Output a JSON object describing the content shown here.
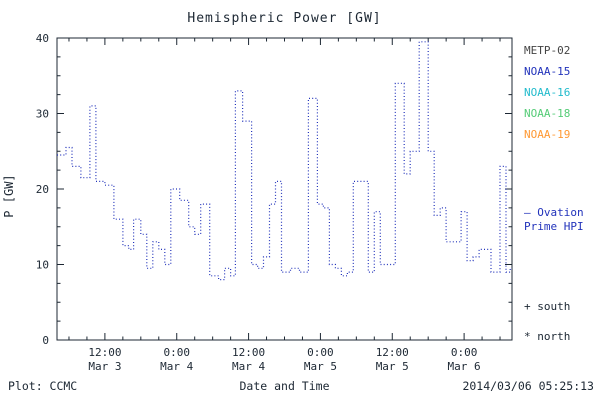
{
  "title": "Hemispheric Power [GW]",
  "ylabel": "P [GW]",
  "xlabel": "Date and Time",
  "footer": {
    "plot_credit": "Plot: CCMC",
    "timestamp": "2014/03/06 05:25:13"
  },
  "legend": {
    "ovation_line1": "– Ovation",
    "ovation_line2": "Prime HPI",
    "south_marker": "+ south",
    "north_marker": "* north"
  },
  "chart_data": {
    "type": "line",
    "step": true,
    "line_style": "dotted",
    "color": "#2233bb",
    "title": "Hemispheric Power [GW]",
    "xlabel": "Date and Time",
    "ylabel": "P [GW]",
    "ylim": [
      0,
      40
    ],
    "xlim_hours": [
      4,
      80
    ],
    "x_axis_note": "hours since Mar 3 00:00",
    "y_ticks": [
      0,
      10,
      20,
      30,
      40
    ],
    "x_ticks": [
      {
        "hour": 12,
        "time": "12:00",
        "date": "Mar 3"
      },
      {
        "hour": 24,
        "time": "0:00",
        "date": "Mar 4"
      },
      {
        "hour": 36,
        "time": "12:00",
        "date": "Mar 4"
      },
      {
        "hour": 48,
        "time": "0:00",
        "date": "Mar 5"
      },
      {
        "hour": 60,
        "time": "12:00",
        "date": "Mar 5"
      },
      {
        "hour": 72,
        "time": "0:00",
        "date": "Mar 6"
      }
    ],
    "x_hours": [
      4.0,
      5.5,
      6.5,
      8.0,
      9.5,
      10.5,
      12.0,
      13.5,
      15.0,
      16.0,
      16.8,
      18.0,
      19.0,
      20.0,
      21.0,
      22.0,
      23.0,
      24.5,
      26.0,
      27.0,
      28.0,
      29.5,
      31.0,
      32.0,
      33.0,
      33.8,
      35.0,
      36.5,
      37.5,
      38.5,
      39.5,
      40.5,
      41.5,
      43.0,
      44.5,
      46.0,
      47.5,
      48.5,
      49.5,
      50.5,
      51.5,
      52.5,
      53.5,
      55.0,
      56.0,
      57.0,
      58.0,
      60.5,
      62.0,
      63.0,
      64.5,
      66.0,
      67.0,
      68.0,
      69.0,
      70.5,
      71.5,
      72.5,
      73.5,
      74.5,
      75.5,
      76.5,
      78.0,
      79.0,
      79.7
    ],
    "y_gw": [
      24.5,
      25.5,
      23,
      21.5,
      31,
      21,
      20.5,
      16,
      12.5,
      12,
      16,
      14,
      9.5,
      13,
      12,
      10,
      20,
      18.5,
      15,
      14,
      18,
      8.5,
      8,
      9.5,
      8.5,
      33,
      29,
      10,
      9.5,
      11,
      18,
      21,
      9,
      9.5,
      9,
      32,
      18,
      17.5,
      10,
      9.5,
      8.5,
      9,
      21,
      21,
      9,
      17,
      10,
      34,
      22,
      25,
      39.5,
      25,
      16.5,
      17.5,
      13,
      13,
      17,
      10.5,
      11,
      12,
      12,
      9,
      23,
      9,
      9.5
    ],
    "legend_entries": [
      {
        "label": "METP-02",
        "color": "#444444"
      },
      {
        "label": "NOAA-15",
        "color": "#2233bb"
      },
      {
        "label": "NOAA-16",
        "color": "#22bbcc"
      },
      {
        "label": "NOAA-18",
        "color": "#55cc77"
      },
      {
        "label": "NOAA-19",
        "color": "#ff9933"
      }
    ],
    "colors": {
      "axis": "#1c2733",
      "series_line": "#2233bb",
      "background": "#ffffff"
    }
  }
}
